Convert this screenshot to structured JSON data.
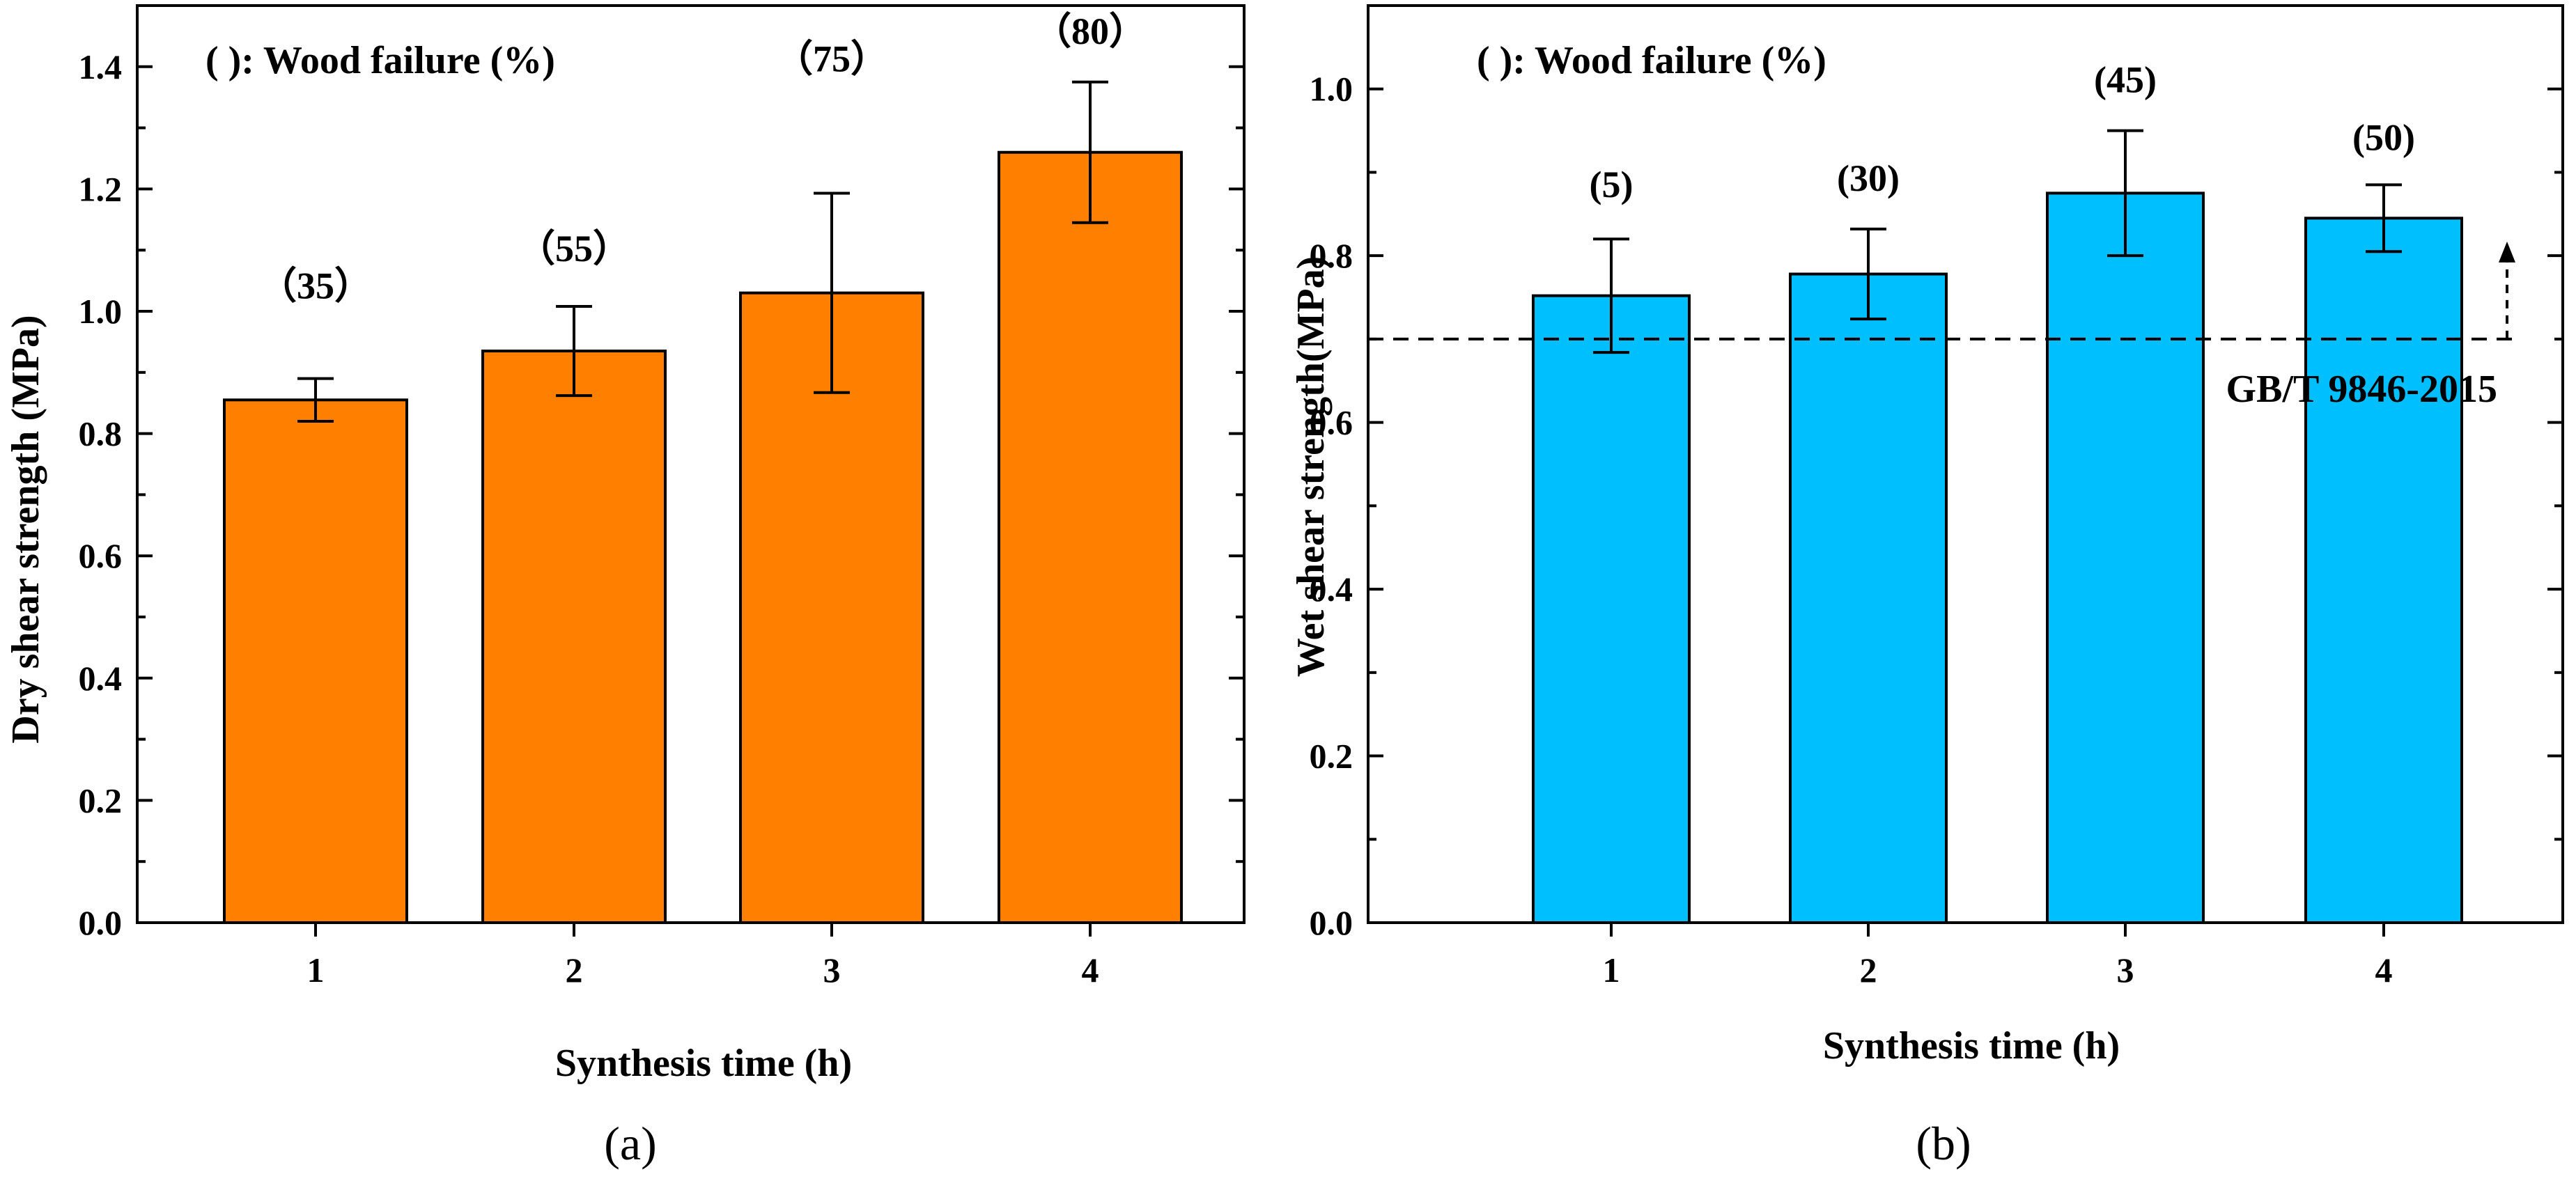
{
  "chart_data": [
    {
      "type": "bar",
      "panel_label": "(a)",
      "annotation": "(  ): Wood failure (%)",
      "xlabel": "Synthesis  time (h)",
      "ylabel": "Dry shear strength (MPa)",
      "categories": [
        "1",
        "2",
        "3",
        "4"
      ],
      "values": [
        0.855,
        0.935,
        1.03,
        1.26
      ],
      "errors": [
        0.035,
        0.073,
        0.163,
        0.115
      ],
      "data_labels": [
        "（35）",
        "（55）",
        "（75）",
        "（80）"
      ],
      "yticks": [
        "0.0",
        "0.2",
        "0.4",
        "0.6",
        "0.8",
        "1.0",
        "1.2",
        "1.4"
      ],
      "ylim": [
        0,
        1.5
      ],
      "bar_color": "#FF8000"
    },
    {
      "type": "bar",
      "panel_label": "(b)",
      "annotation": "(  ): Wood failure (%)",
      "xlabel": "Synthesis time (h)",
      "ylabel": "Wet shear strength(MPa)",
      "categories": [
        "1",
        "2",
        "3",
        "4"
      ],
      "values": [
        0.752,
        0.778,
        0.875,
        0.845
      ],
      "errors": [
        0.068,
        0.054,
        0.075,
        0.04
      ],
      "data_labels": [
        "(5)",
        "(30)",
        "(45)",
        "(50)"
      ],
      "yticks": [
        "0.0",
        "0.2",
        "0.4",
        "0.6",
        "0.8",
        "1.0"
      ],
      "ylim": [
        0,
        1.1
      ],
      "reference_line": {
        "value": 0.7,
        "label": "GB/T 9846-2015"
      },
      "bar_color": "#00BFFF"
    }
  ]
}
